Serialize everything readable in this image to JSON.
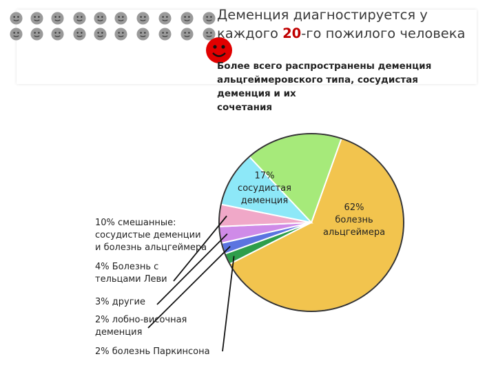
{
  "header": {
    "title_before": "Деменция диагностируется у каждого ",
    "title_number": "20",
    "title_after": "-го пожилого человека",
    "subtitle_line1": "Более всего распространены деменция",
    "subtitle_line2": "альцгеймеровского типа, сосудистая",
    "subtitle_line3": "деменция и их",
    "subtitle_line4": "сочетания",
    "face_icon_count": 20,
    "face_color": "#9a9a9a",
    "accent_face_color": "#e00000",
    "accent_color": "#c00000"
  },
  "chart_data": {
    "type": "pie",
    "unit": "%",
    "slices": [
      {
        "value": 62,
        "label_lines": [
          "62%",
          "болезнь",
          "альцгеймера"
        ],
        "color": "#f2c44e"
      },
      {
        "value": 2,
        "label_lines": [
          "2% болезнь Паркинсона"
        ],
        "color": "#2e9e4b"
      },
      {
        "value": 2,
        "label_lines": [
          "2% лобно-височная",
          "деменция"
        ],
        "color": "#5b74e0"
      },
      {
        "value": 3,
        "label_lines": [
          "3% другие"
        ],
        "color": "#cf8be8"
      },
      {
        "value": 4,
        "label_lines": [
          "4% Болезнь с",
          "тельцами Леви"
        ],
        "color": "#f0a8c8"
      },
      {
        "value": 10,
        "label_lines": [
          "10% смешанные:",
          "сосудистые деменции",
          "и болезнь альцгеймера"
        ],
        "color": "#8de8f8"
      },
      {
        "value": 17,
        "label_lines": [
          "17%",
          "сосудистая",
          "деменция"
        ],
        "color": "#a6ea7a"
      }
    ]
  }
}
